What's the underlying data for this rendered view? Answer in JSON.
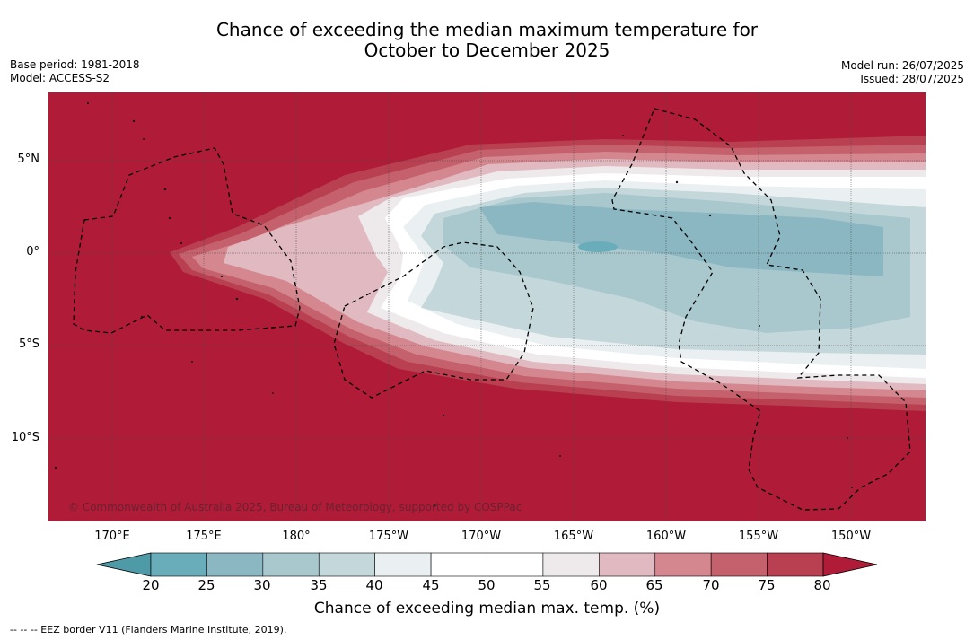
{
  "title_line1": "Chance of exceeding the median maximum temperature for",
  "title_line2": "October to December 2025",
  "base_period": "Base period: 1981-2018",
  "model": "Model: ACCESS-S2",
  "model_run": "Model run: 26/07/2025",
  "issued": "Issued: 28/07/2025",
  "copyright": "© Commonwealth of Australia 2025, Bureau of Meteorology, supported by COSPPac",
  "lat_labels": [
    "5°N",
    "0°",
    "5°S",
    "10°S"
  ],
  "lon_labels": [
    "170°E",
    "175°E",
    "180°",
    "175°W",
    "170°W",
    "165°W",
    "160°W",
    "155°W",
    "150°W"
  ],
  "colorbar": {
    "label": "Chance of exceeding median max. temp. (%)",
    "ticks": [
      "20",
      "25",
      "30",
      "35",
      "40",
      "45",
      "50",
      "55",
      "60",
      "65",
      "70",
      "75",
      "80"
    ],
    "colors": [
      "#4f9aa7",
      "#6aadba",
      "#8bb7c3",
      "#a8c8cd",
      "#c4d8dc",
      "#eaf0f2",
      "#ffffff",
      "#ffffff",
      "#eeeaeb",
      "#e1b9c0",
      "#d4878f",
      "#c5616c",
      "#b84050",
      "#b01c38"
    ]
  },
  "legend_note": "--  --  -- EEZ border V11 (Flanders Marine Institute, 2019)."
}
